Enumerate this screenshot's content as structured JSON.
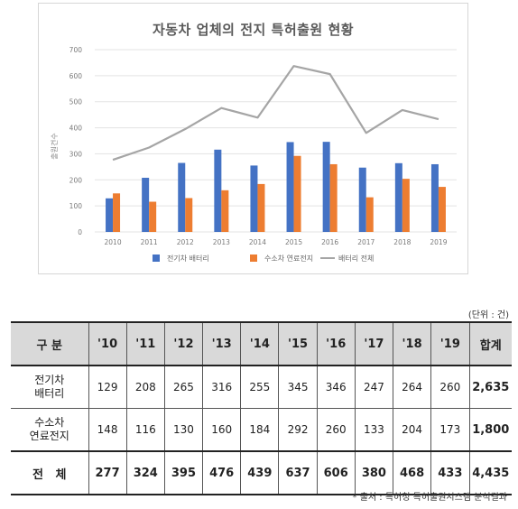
{
  "chart_data": {
    "type": "bar",
    "title": "자동차 업체의 전지 특허출원 현황",
    "ylabel": "출원건수",
    "ylim": [
      0,
      700
    ],
    "yticks": [
      0,
      100,
      200,
      300,
      400,
      500,
      600,
      700
    ],
    "categories": [
      "2010",
      "2011",
      "2012",
      "2013",
      "2014",
      "2015",
      "2016",
      "2017",
      "2018",
      "2019"
    ],
    "series": [
      {
        "name": "전기차 배터리",
        "type": "bar",
        "color": "#4472c4",
        "values": [
          129,
          208,
          265,
          316,
          255,
          345,
          346,
          247,
          264,
          260
        ]
      },
      {
        "name": "수소차 연료전지",
        "type": "bar",
        "color": "#ed7d31",
        "values": [
          148,
          116,
          130,
          160,
          184,
          292,
          260,
          133,
          204,
          173
        ]
      },
      {
        "name": "배터리 전체",
        "type": "line",
        "color": "#a5a5a5",
        "values": [
          277,
          324,
          395,
          476,
          439,
          637,
          606,
          380,
          468,
          433
        ]
      }
    ],
    "grid": true,
    "legend": "bottom"
  },
  "table": {
    "unit": "(단위 : 건)",
    "header": {
      "category": "구 분",
      "years": [
        "'10",
        "'11",
        "'12",
        "'13",
        "'14",
        "'15",
        "'16",
        "'17",
        "'18",
        "'19"
      ],
      "total": "합계"
    },
    "rows": [
      {
        "label": "전기차\n배터리",
        "values": [
          "129",
          "208",
          "265",
          "316",
          "255",
          "345",
          "346",
          "247",
          "264",
          "260"
        ],
        "total": "2,635"
      },
      {
        "label": "수소차\n연료전지",
        "values": [
          "148",
          "116",
          "130",
          "160",
          "184",
          "292",
          "260",
          "133",
          "204",
          "173"
        ],
        "total": "1,800"
      },
      {
        "label": "전   체",
        "values": [
          "277",
          "324",
          "395",
          "476",
          "439",
          "637",
          "606",
          "380",
          "468",
          "433"
        ],
        "total": "4,435"
      }
    ]
  },
  "source": "* 출처 : 특허청 특허출원시스템 분석결과"
}
